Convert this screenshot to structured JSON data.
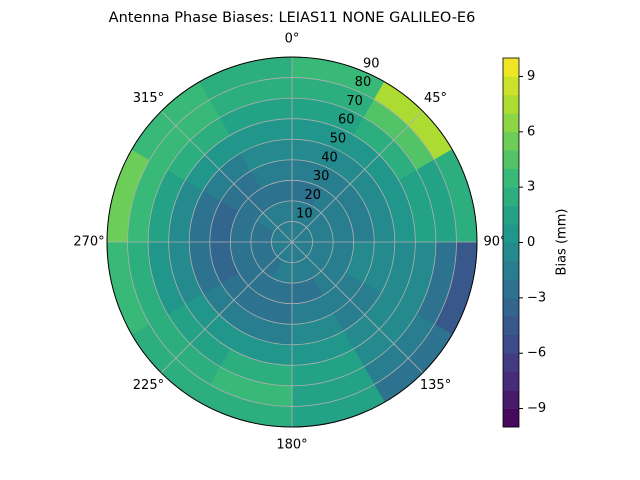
{
  "chart_data": {
    "type": "polar-contour",
    "title": "Antenna Phase Biases: LEIAS11         NONE GALILEO-E6",
    "r_edges": [
      0,
      10,
      20,
      30,
      40,
      50,
      60,
      70,
      80,
      90
    ],
    "theta_edges": [
      0,
      30,
      60,
      90,
      120,
      150,
      180,
      210,
      240,
      270,
      300,
      330,
      360
    ],
    "values": [
      [
        -1.5,
        -1.5,
        -1.5,
        -1.5,
        -1.5,
        -1.5,
        -1.5,
        -1.5,
        -1.5,
        -1.5,
        -1.5,
        -1.5
      ],
      [
        -2,
        -2,
        -1.5,
        -2,
        -2,
        -2,
        -2,
        -2.5,
        -2.5,
        -2.5,
        -2,
        -2
      ],
      [
        -2.5,
        -2,
        -1.5,
        -1.5,
        -2,
        -2.5,
        -2.5,
        -3,
        -3,
        -3,
        -2.5,
        -2.5
      ],
      [
        -2,
        -1.5,
        -1.5,
        -1,
        -2,
        -2,
        -2.5,
        -3,
        -3.5,
        -3.5,
        -2.5,
        -2
      ],
      [
        -1,
        -1,
        -0.5,
        -1,
        -1.5,
        -1,
        -1.5,
        -2,
        -2.5,
        -2.5,
        -1.5,
        -1
      ],
      [
        0.5,
        0.5,
        0,
        -0.5,
        -0.5,
        0.5,
        0.5,
        0,
        -1,
        -0.5,
        0.5,
        0.5
      ],
      [
        1.5,
        2,
        1,
        -1,
        -0.5,
        1.5,
        2,
        1,
        0.5,
        1,
        2,
        1.5
      ],
      [
        2.5,
        4,
        1.5,
        -3,
        -2,
        1,
        3,
        2,
        2,
        3,
        3,
        2.5
      ],
      [
        3,
        7,
        2,
        -5,
        -2.5,
        1,
        2.5,
        2,
        3,
        5,
        3,
        2.5
      ]
    ],
    "rlim": [
      0,
      90
    ],
    "rticks": [
      10,
      20,
      30,
      40,
      50,
      60,
      70,
      80,
      90
    ],
    "theta_ticks": [
      {
        "value": 0,
        "label": "0°"
      },
      {
        "value": 45,
        "label": "45°"
      },
      {
        "value": 90,
        "label": "90°"
      },
      {
        "value": 135,
        "label": "135°"
      },
      {
        "value": 180,
        "label": "180°"
      },
      {
        "value": 225,
        "label": "225°"
      },
      {
        "value": 270,
        "label": "270°"
      },
      {
        "value": 315,
        "label": "315°"
      }
    ],
    "clim": [
      -10,
      10
    ],
    "level_step": 1,
    "cticks": [
      {
        "value": -9,
        "label": "−9"
      },
      {
        "value": -6,
        "label": "−6"
      },
      {
        "value": -3,
        "label": "−3"
      },
      0,
      3,
      6,
      9
    ],
    "colorbar_label": "Bias (mm)",
    "colormap": [
      "#440154",
      "#482878",
      "#3e4989",
      "#31688e",
      "#26828e",
      "#1f9e89",
      "#35b779",
      "#6ece58",
      "#b5de2b",
      "#fde725"
    ],
    "grid": true
  }
}
